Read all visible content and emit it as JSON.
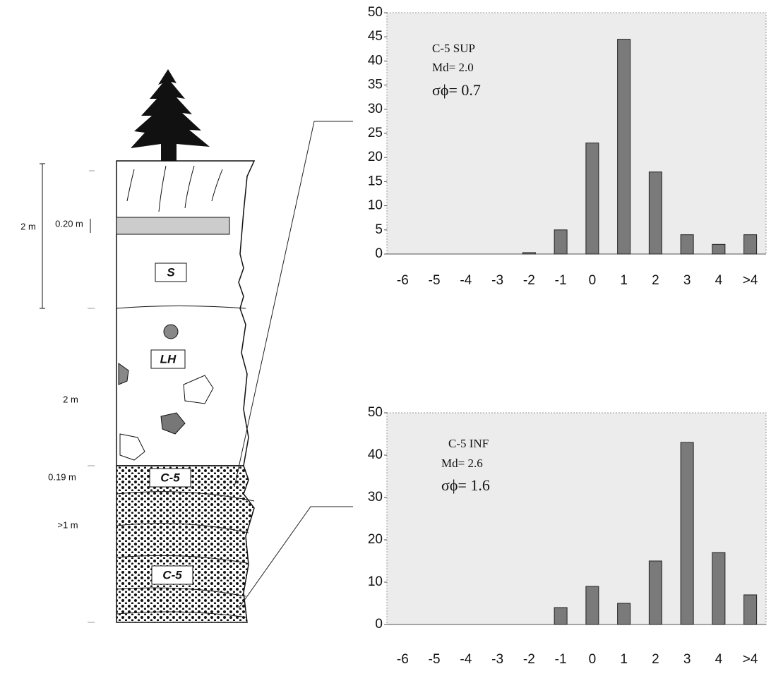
{
  "chart_data": [
    {
      "type": "bar",
      "annotations": [
        "C-5 SUP",
        "Md= 2.0",
        "σϕ= 0.7"
      ],
      "categories": [
        "-6",
        "-5",
        "-4",
        "-3",
        "-2",
        "-1",
        "0",
        "1",
        "2",
        "3",
        "4",
        ">4"
      ],
      "values": [
        0,
        0,
        0,
        0,
        0.3,
        5,
        23,
        44.5,
        17,
        4,
        2,
        4
      ],
      "color": "#7a7a7a",
      "ylim": [
        0,
        50
      ],
      "yticks": [
        0,
        5,
        10,
        15,
        20,
        25,
        30,
        35,
        40,
        45,
        50
      ]
    },
    {
      "type": "bar",
      "annotations": [
        "C-5 INF",
        "Md= 2.6",
        "σϕ= 1.6"
      ],
      "categories": [
        "-6",
        "-5",
        "-4",
        "-3",
        "-2",
        "-1",
        "0",
        "1",
        "2",
        "3",
        "4",
        ">4"
      ],
      "values": [
        0,
        0,
        0,
        0,
        0,
        4,
        9,
        5,
        15,
        43,
        17,
        7
      ],
      "color": "#7a7a7a",
      "ylim": [
        0,
        50
      ],
      "yticks": [
        0,
        10,
        20,
        30,
        40,
        50
      ]
    }
  ],
  "column": {
    "thickness": [
      "2 m",
      "0.20 m",
      "2 m",
      "0.19 m",
      ">1 m"
    ],
    "layers": [
      "S",
      "LH",
      "C-5",
      "C-5"
    ]
  }
}
